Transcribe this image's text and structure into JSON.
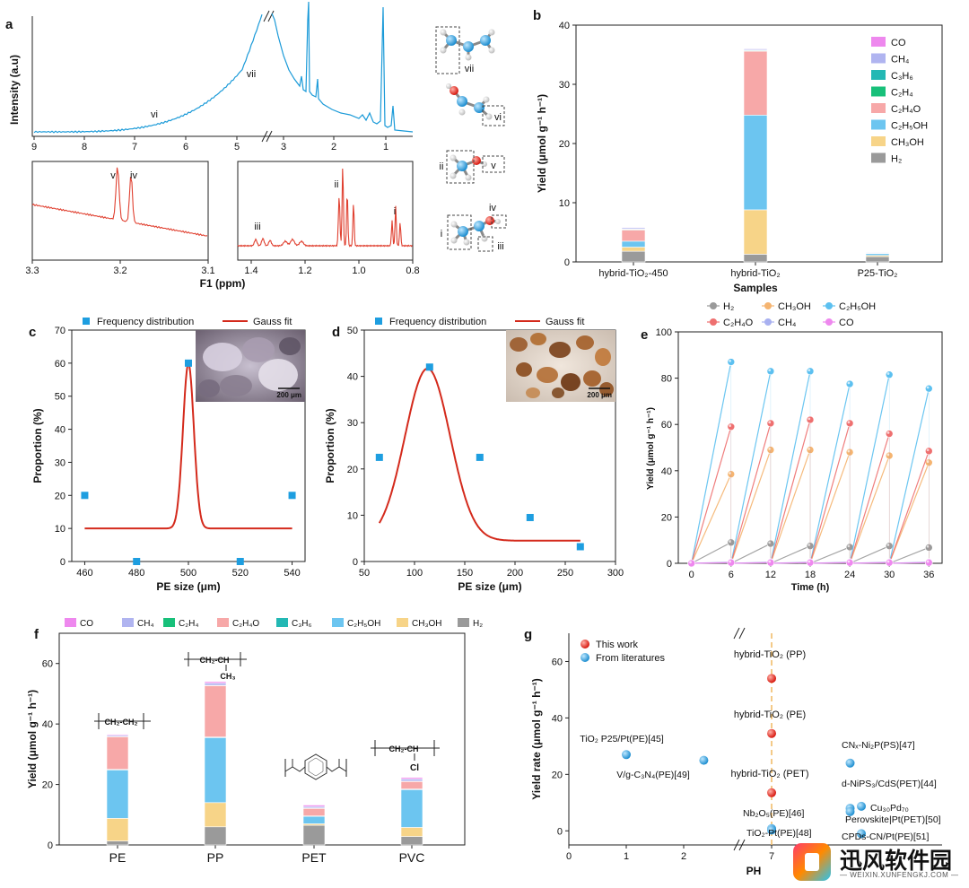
{
  "panels": {
    "a": {
      "label": "a",
      "ylabel": "Intensity (a.u)",
      "xlabel": "F1 (ppm)",
      "top_ticks": [
        "9",
        "8",
        "7",
        "6",
        "5",
        "4",
        "3",
        "2",
        "1"
      ],
      "inset1_ticks": [
        "3.3",
        "3.2",
        "3.1"
      ],
      "inset2_ticks": [
        "1.4",
        "1.2",
        "1.0",
        "0.8"
      ],
      "peak_labels": [
        "vi",
        "vii",
        "v",
        "iv",
        "iii",
        "ii",
        "i"
      ],
      "mol_labels": [
        "vii",
        "vi",
        "ii",
        "v",
        "iv",
        "i",
        "iii"
      ]
    },
    "b": {
      "label": "b"
    },
    "c": {
      "label": "c",
      "inset_scale": "200 μm"
    },
    "d": {
      "label": "d",
      "inset_scale": "200 μm"
    },
    "e": {
      "label": "e"
    },
    "f": {
      "label": "f"
    },
    "g": {
      "label": "g"
    }
  },
  "colors": {
    "CO": "#ee88ee",
    "CH4": "#b0b4f0",
    "C3H6": "#23b8b4",
    "C2H4": "#18c07a",
    "C2H4O": "#f7a8a8",
    "C2H5OH": "#6cc5f0",
    "CH3OH": "#f7d488",
    "H2": "#9a9a9a",
    "nmr": "#1a9ad8",
    "nmr_inset": "#e04030",
    "gauss": "#d42a1c",
    "point": "#1e9ee0",
    "dash": "#f0b860",
    "red_ball": "#e02020",
    "blue_ball": "#1e9ee0"
  },
  "chart_data": [
    {
      "id": "b",
      "type": "bar",
      "stacked": true,
      "title": "",
      "xlabel": "Samples",
      "ylabel": "Yield (μmol g⁻¹ h⁻¹)",
      "ylim": [
        0,
        40
      ],
      "yticks": [
        "0",
        "10",
        "20",
        "30",
        "40"
      ],
      "categories": [
        "hybrid-TiO₂-450",
        "hybrid-TiO₂",
        "P25-TiO₂"
      ],
      "legend_position": "top-right",
      "series": [
        {
          "name": "H₂",
          "key": "H2",
          "values": [
            1.8,
            1.3,
            0.9
          ]
        },
        {
          "name": "CH₃OH",
          "key": "CH3OH",
          "values": [
            0.7,
            7.5,
            0.2
          ]
        },
        {
          "name": "C₂H₅OH",
          "key": "C2H5OH",
          "values": [
            1.0,
            16.0,
            0.3
          ]
        },
        {
          "name": "C₂H₄O",
          "key": "C2H4O",
          "values": [
            1.9,
            10.8,
            0.1
          ]
        },
        {
          "name": "C₂H₄",
          "key": "C2H4",
          "values": [
            0.1,
            0.1,
            0.0
          ]
        },
        {
          "name": "C₃H₆",
          "key": "C3H6",
          "values": [
            0.1,
            0.1,
            0.0
          ]
        },
        {
          "name": "CH₄",
          "key": "CH4",
          "values": [
            0.2,
            0.2,
            0.1
          ]
        },
        {
          "name": "CO",
          "key": "CO",
          "values": [
            0.1,
            0.1,
            0.0
          ]
        }
      ]
    },
    {
      "id": "c",
      "type": "scatter",
      "title": "",
      "xlabel": "PE size (μm)",
      "ylabel": "Proportion (%)",
      "xlim": [
        455,
        545
      ],
      "ylim": [
        0,
        70
      ],
      "xticks": [
        "460",
        "480",
        "500",
        "520",
        "540"
      ],
      "yticks": [
        "0",
        "10",
        "20",
        "30",
        "40",
        "50",
        "60",
        "70"
      ],
      "legend": [
        "Frequency distribution",
        "Gauss fit"
      ],
      "legend_position": "top",
      "points": [
        [
          460,
          20
        ],
        [
          480,
          0
        ],
        [
          500,
          60
        ],
        [
          520,
          0
        ],
        [
          540,
          20
        ]
      ],
      "fit": {
        "y0": 10,
        "A": 50,
        "xc": 500,
        "w": 4.2
      }
    },
    {
      "id": "d",
      "type": "scatter",
      "title": "",
      "xlabel": "PE size (μm)",
      "ylabel": "Proportion (%)",
      "xlim": [
        50,
        300
      ],
      "ylim": [
        0,
        50
      ],
      "xticks": [
        "50",
        "100",
        "150",
        "200",
        "250",
        "300"
      ],
      "yticks": [
        "0",
        "10",
        "20",
        "30",
        "40",
        "50"
      ],
      "legend": [
        "Frequency distribution",
        "Gauss fit"
      ],
      "legend_position": "top",
      "points": [
        [
          65,
          22.5
        ],
        [
          115,
          42
        ],
        [
          165,
          22.5
        ],
        [
          215,
          9.5
        ],
        [
          265,
          3.2
        ]
      ],
      "fit": {
        "y0": 4.5,
        "A": 37.2,
        "xc": 113,
        "w": 45,
        "x_from": 65,
        "x_to": 265
      }
    },
    {
      "id": "e",
      "type": "line",
      "title": "",
      "xlabel": "Time (h)",
      "ylabel": "Yield (μmol g⁻¹ h⁻¹)",
      "xlim": [
        -2,
        38
      ],
      "ylim": [
        0,
        100
      ],
      "xticks": [
        "0",
        "6",
        "12",
        "18",
        "24",
        "30",
        "36"
      ],
      "yticks": [
        "0",
        "20",
        "40",
        "60",
        "80",
        "100"
      ],
      "legend_position": "top",
      "x": [
        0,
        6,
        12,
        18,
        24,
        30,
        36
      ],
      "series": [
        {
          "name": "H₂",
          "key": "H2",
          "values": [
            0,
            9,
            8.5,
            7.5,
            7,
            7.5,
            6.8
          ]
        },
        {
          "name": "CH₃OH",
          "key": "CH3OH",
          "values": [
            0,
            38.5,
            49,
            49,
            48,
            46.5,
            43.5
          ]
        },
        {
          "name": "C₂H₅OH",
          "key": "C2H5OH",
          "values": [
            0,
            87,
            83,
            83,
            77.5,
            81.5,
            75.5
          ]
        },
        {
          "name": "C₂H₄O",
          "key": "C2H4O",
          "values": [
            0,
            59,
            60.5,
            62,
            60.5,
            56,
            48.5
          ]
        },
        {
          "name": "CH₄",
          "key": "CH4",
          "values": [
            0,
            0.5,
            0.5,
            0.5,
            0.5,
            0.5,
            0.5
          ]
        },
        {
          "name": "CO",
          "key": "CO",
          "values": [
            0,
            0.3,
            0.3,
            0.3,
            0.3,
            0.3,
            0.3
          ]
        }
      ]
    },
    {
      "id": "f",
      "type": "bar",
      "stacked": true,
      "title": "",
      "xlabel": "",
      "ylabel": "Yield (μmol g⁻¹ h⁻¹)",
      "ylim": [
        0,
        70
      ],
      "yticks": [
        "0",
        "20",
        "40",
        "60"
      ],
      "categories": [
        "PE",
        "PP",
        "PET",
        "PVC"
      ],
      "legend_position": "top",
      "series": [
        {
          "name": "H₂",
          "key": "H2",
          "values": [
            1.3,
            6.0,
            6.5,
            2.8
          ]
        },
        {
          "name": "CH₃OH",
          "key": "CH3OH",
          "values": [
            7.5,
            8.0,
            0.5,
            3.0
          ]
        },
        {
          "name": "C₂H₅OH",
          "key": "C2H5OH",
          "values": [
            16.0,
            21.5,
            2.5,
            12.5
          ]
        },
        {
          "name": "C₃H₆",
          "key": "C3H6",
          "values": [
            0.2,
            0.2,
            0.1,
            0.2
          ]
        },
        {
          "name": "C₂H₄O",
          "key": "C2H4O",
          "values": [
            10.8,
            17.0,
            2.5,
            2.5
          ]
        },
        {
          "name": "C₂H₄",
          "key": "C2H4",
          "values": [
            0.1,
            0.1,
            0.1,
            0.1
          ]
        },
        {
          "name": "CH₄",
          "key": "CH4",
          "values": [
            0.4,
            0.7,
            0.5,
            0.7
          ]
        },
        {
          "name": "CO",
          "key": "CO",
          "values": [
            0.3,
            0.5,
            0.5,
            0.5
          ]
        }
      ],
      "structures": [
        "PE",
        "PP",
        "PET",
        "PVC"
      ],
      "structure_labels": [
        "CH₂-CH₂",
        "CH₂-CH",
        "CH₃",
        "CH₂-CH",
        "Cl"
      ]
    },
    {
      "id": "g",
      "type": "scatter",
      "title": "",
      "xlabel": "PH",
      "ylabel": "Yield rate (μmol g⁻¹ h⁻¹)",
      "ylim": [
        -5,
        70
      ],
      "yticks": [
        "0",
        "20",
        "40",
        "60"
      ],
      "xticks": [
        "0",
        "1",
        "2",
        "7"
      ],
      "legend": [
        "This work",
        "From literatures"
      ],
      "legend_position": "top-left",
      "this_work": [
        {
          "label": "hybrid-TiO₂ (PP)",
          "ph": 7,
          "y": 54
        },
        {
          "label": "hybrid-TiO₂ (PE)",
          "ph": 7,
          "y": 34.5
        },
        {
          "label": "hybrid-TiO₂ (PET)",
          "ph": 7,
          "y": 13.5
        }
      ],
      "literature": [
        {
          "label": "TiO₂ P25/Pt(PE)[45]",
          "ph": 1.0,
          "y": 27
        },
        {
          "label": "V/g-C₃N₄(PE)[49]",
          "ph": 2.35,
          "y": 25
        },
        {
          "label": "Nb₂O₅(PE)[46]",
          "ph": 7,
          "y": 0.8
        },
        {
          "label": "TiO₂-Pt(PE)[48]",
          "ph": 7,
          "y": 0.3
        },
        {
          "label": "CNₓ-Ni₂P(PS)[47]",
          "ph": 10.5,
          "y": 24
        },
        {
          "label": "d-NiPS₃/CdS(PET)[44]",
          "ph": 10.5,
          "y": 8
        },
        {
          "label": "Cu₃₀Pd₇₀",
          "ph": 11.0,
          "y": 8.7
        },
        {
          "label": "Perovskite|Pt(PET)[50]",
          "ph": 10.5,
          "y": 6.8
        },
        {
          "label": "CPDs-CN/Pt(PE)[51]",
          "ph": 11.0,
          "y": -1
        }
      ]
    }
  ],
  "watermark": {
    "name": "迅风软件园",
    "url": "— WEIXIN.XUNFENGKJ.COM —"
  }
}
